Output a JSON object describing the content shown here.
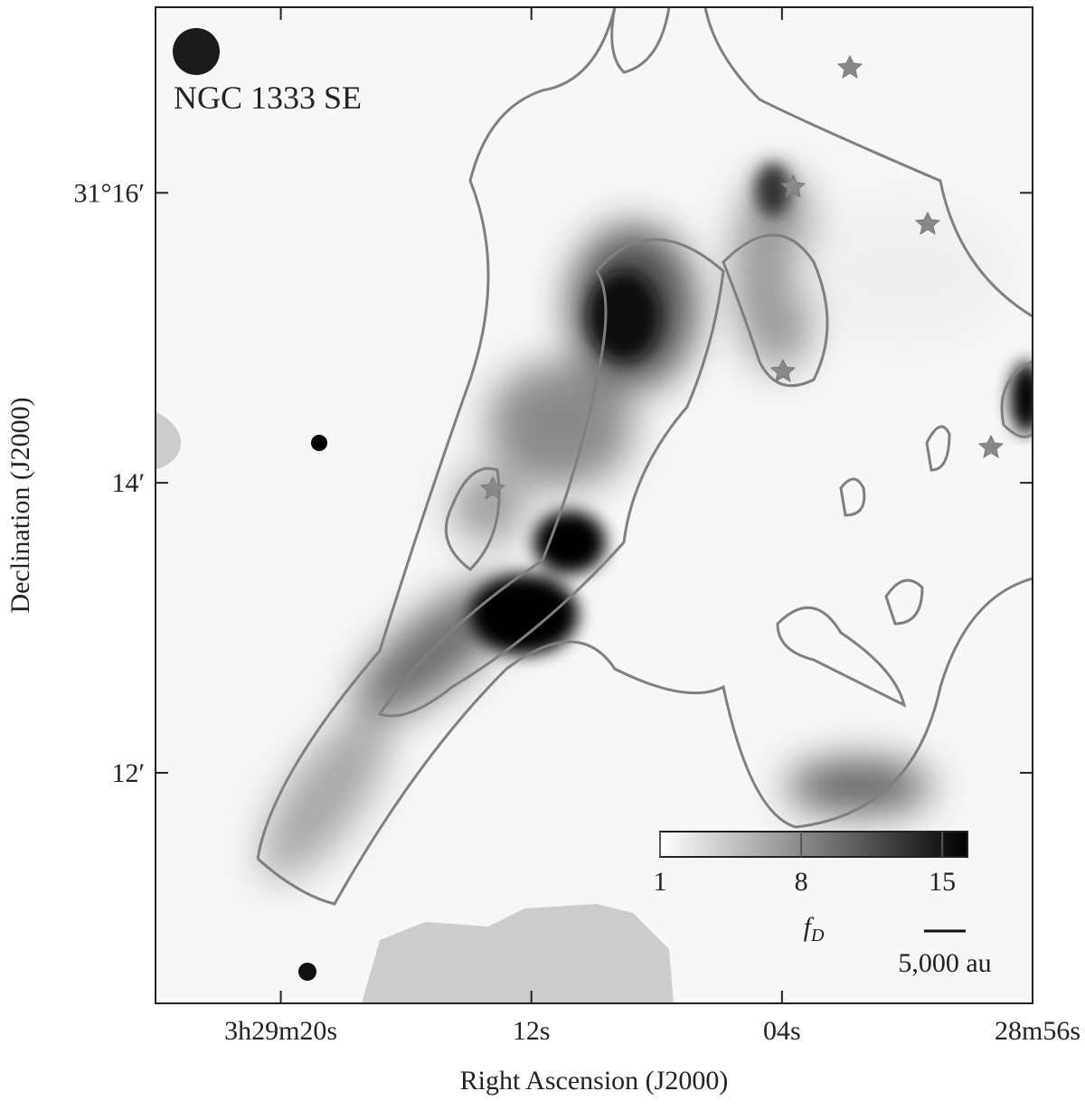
{
  "chart_data": {
    "type": "image",
    "title": "NGC 1333 SE",
    "xlabel": "Right Ascension (J2000)",
    "ylabel": "Declination (J2000)",
    "xlim": [
      84,
      56
    ],
    "xticks": [
      {
        "value": 80,
        "label": "3h29m20s"
      },
      {
        "value": 72,
        "label": "12s"
      },
      {
        "value": 64,
        "label": "04s"
      },
      {
        "value": 56,
        "label": "28m56s"
      }
    ],
    "ylim": [
      10.41,
      17.28
    ],
    "yticks": [
      {
        "value": 16,
        "label": "31°16′"
      },
      {
        "value": 14,
        "label": "14′"
      },
      {
        "value": 12,
        "label": "12′"
      }
    ],
    "colorbar": {
      "lim": [
        1,
        16.25
      ],
      "ticks": [
        1,
        8,
        15
      ],
      "label_symbol": "f",
      "label_subscript": "D"
    },
    "scalebar_label": "5,000 au"
  }
}
